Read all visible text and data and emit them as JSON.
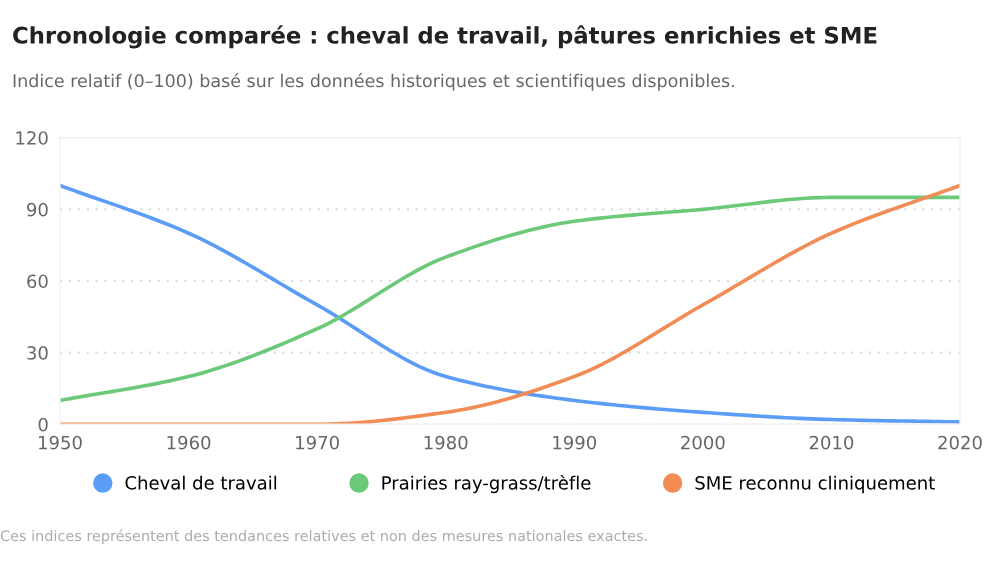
{
  "chart_data": {
    "type": "line",
    "title": "Chronologie comparée : cheval de travail, pâtures enrichies et SME",
    "subtitle": "Indice relatif (0–100) basé sur les données historiques et scientifiques disponibles.",
    "x": [
      1950,
      1960,
      1970,
      1980,
      1990,
      2000,
      2010,
      2020
    ],
    "series": [
      {
        "name": "Cheval de travail",
        "color": "#5b9cf6",
        "values": [
          100,
          80,
          50,
          20,
          10,
          5,
          2,
          1
        ]
      },
      {
        "name": "Prairies ray-grass/trèfle",
        "color": "#6cc97a",
        "values": [
          10,
          20,
          40,
          70,
          85,
          90,
          95,
          95
        ]
      },
      {
        "name": "SME reconnu cliniquement",
        "color": "#f28c55",
        "values": [
          0,
          0,
          0,
          5,
          20,
          50,
          80,
          100
        ]
      }
    ],
    "xlim": [
      1950,
      2020
    ],
    "xticks": [
      1950,
      1960,
      1970,
      1980,
      1990,
      2000,
      2010,
      2020
    ],
    "ylim": [
      0,
      120
    ],
    "yticks": [
      0,
      30,
      60,
      90,
      120
    ],
    "grid": "y",
    "legend": "bottom",
    "marker": "none",
    "line_style": "solid",
    "annotations": [
      "Ces indices représentent des tendances relatives et non des mesures nationales exactes."
    ]
  }
}
